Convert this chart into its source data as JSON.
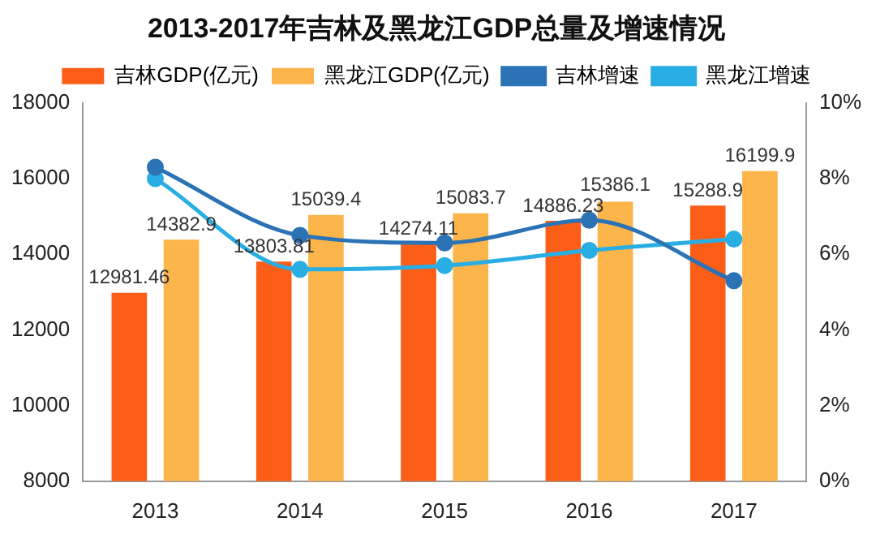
{
  "chart_data": {
    "type": "bar",
    "title": "2013-2017年吉林及黑龙江GDP总量及增速情况",
    "categories": [
      "2013",
      "2014",
      "2015",
      "2016",
      "2017"
    ],
    "series": [
      {
        "name": "吉林GDP(亿元)",
        "color": "#fc5e17",
        "values": [
          12981.46,
          13803.81,
          14274.11,
          14886.23,
          15288.9
        ],
        "value_labels": [
          "12981.46",
          "13803.81",
          "14274.11",
          "14886.23",
          "15288.9"
        ]
      },
      {
        "name": "黑龙江GDP(亿元)",
        "color": "#fbb54a",
        "values": [
          14382.9,
          15039.4,
          15083.7,
          15386.1,
          16199.9
        ],
        "value_labels": [
          "14382.9",
          "15039.4",
          "15083.7",
          "15386.1",
          "16199.9"
        ]
      },
      {
        "name": "吉林增速",
        "type": "line",
        "axis": "y2",
        "color": "#2b73b5",
        "values": [
          8.3,
          6.5,
          6.3,
          6.9,
          5.3
        ]
      },
      {
        "name": "黑龙江增速",
        "type": "line",
        "axis": "y2",
        "color": "#29aee4",
        "values": [
          8.0,
          5.6,
          5.7,
          6.1,
          6.4
        ]
      }
    ],
    "ylim": [
      8000,
      18000
    ],
    "yticks": [
      8000,
      10000,
      12000,
      14000,
      16000,
      18000
    ],
    "y2lim": [
      0,
      10
    ],
    "y2ticks": [
      {
        "value": 0,
        "label": "0%"
      },
      {
        "value": 2,
        "label": "2%"
      },
      {
        "value": 4,
        "label": "4%"
      },
      {
        "value": 6,
        "label": "6%"
      },
      {
        "value": 8,
        "label": "8%"
      },
      {
        "value": 10,
        "label": "10%"
      }
    ],
    "legend": "top",
    "marker": "circle",
    "line_style": "solid"
  }
}
